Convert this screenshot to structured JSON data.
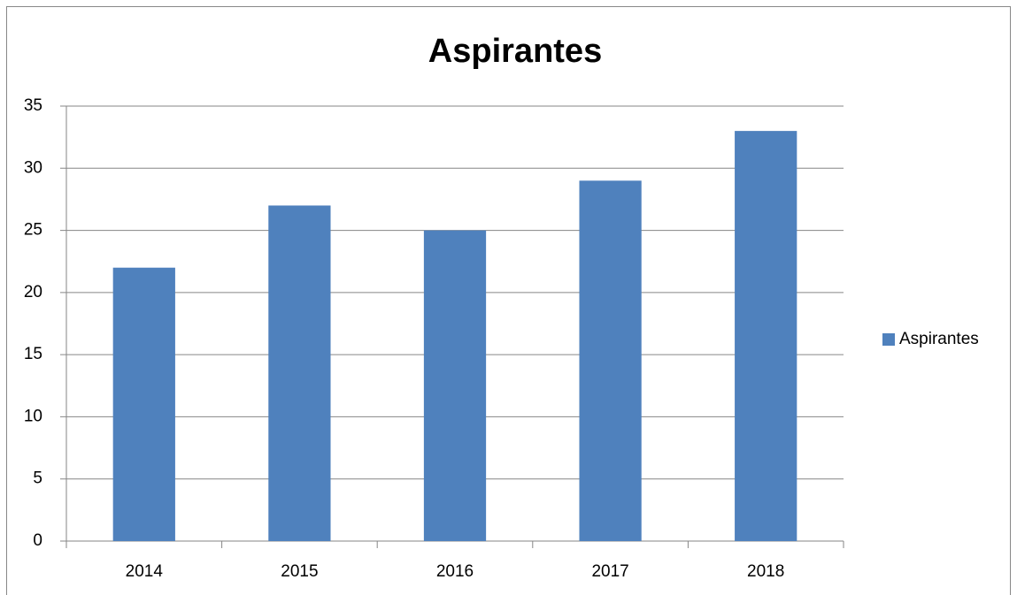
{
  "chart_data": {
    "type": "bar",
    "title": "Aspirantes",
    "categories": [
      "2014",
      "2015",
      "2016",
      "2017",
      "2018"
    ],
    "series": [
      {
        "name": "Aspirantes",
        "color": "#4f81bd",
        "values": [
          22,
          27,
          25,
          29,
          33
        ]
      }
    ],
    "ylim": [
      0,
      35
    ],
    "yticks": [
      0,
      5,
      10,
      15,
      20,
      25,
      30,
      35
    ],
    "grid": true,
    "legend": "right"
  }
}
